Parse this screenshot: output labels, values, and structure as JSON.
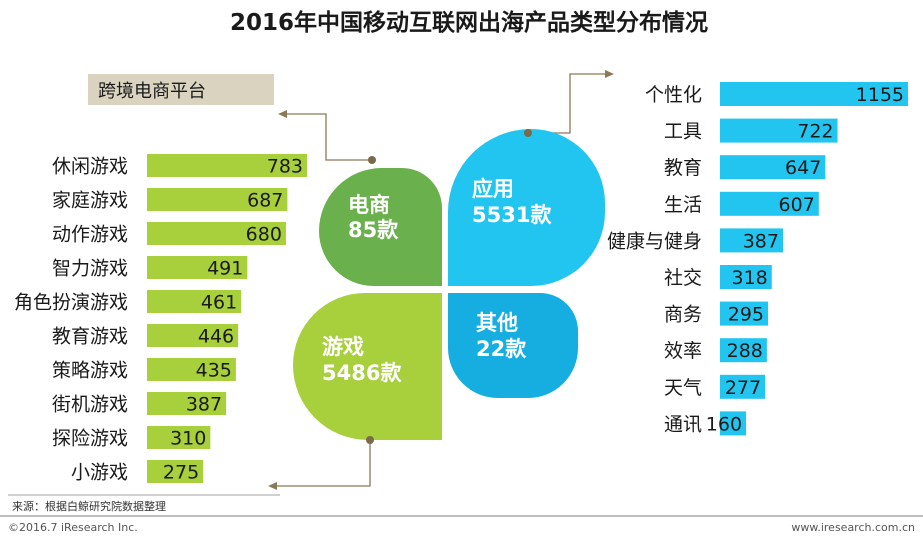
{
  "chart_data": {
    "type": "bar",
    "title": "2016年中国移动互联网出海产品类型分布情况",
    "quadrants": [
      {
        "name": "电商",
        "value_label": "85款",
        "value": 85,
        "color": "#6ab04c"
      },
      {
        "name": "应用",
        "value_label": "5531款",
        "value": 5531,
        "color": "#22c5f0"
      },
      {
        "name": "游戏",
        "value_label": "5486款",
        "value": 5486,
        "color": "#a8cf3c"
      },
      {
        "name": "其他",
        "value_label": "22款",
        "value": 22,
        "color": "#16aee0"
      }
    ],
    "ecommerce_callout": "跨境电商平台",
    "games": {
      "color": "#a8cf3c",
      "categories": [
        "休闲游戏",
        "家庭游戏",
        "动作游戏",
        "智力游戏",
        "角色扮演游戏",
        "教育游戏",
        "策略游戏",
        "街机游戏",
        "探险游戏",
        "小游戏"
      ],
      "values": [
        783,
        687,
        680,
        491,
        461,
        446,
        435,
        387,
        310,
        275
      ]
    },
    "apps": {
      "color": "#22c5f0",
      "categories": [
        "个性化",
        "工具",
        "教育",
        "生活",
        "健康与健身",
        "社交",
        "商务",
        "效率",
        "天气",
        "通讯"
      ],
      "values": [
        1155,
        722,
        647,
        607,
        387,
        318,
        295,
        288,
        277,
        160
      ]
    }
  },
  "source": "来源：根据白鲸研究院数据整理",
  "copyright": "©2016.7 iResearch Inc.",
  "website": "www.iresearch.com.cn"
}
